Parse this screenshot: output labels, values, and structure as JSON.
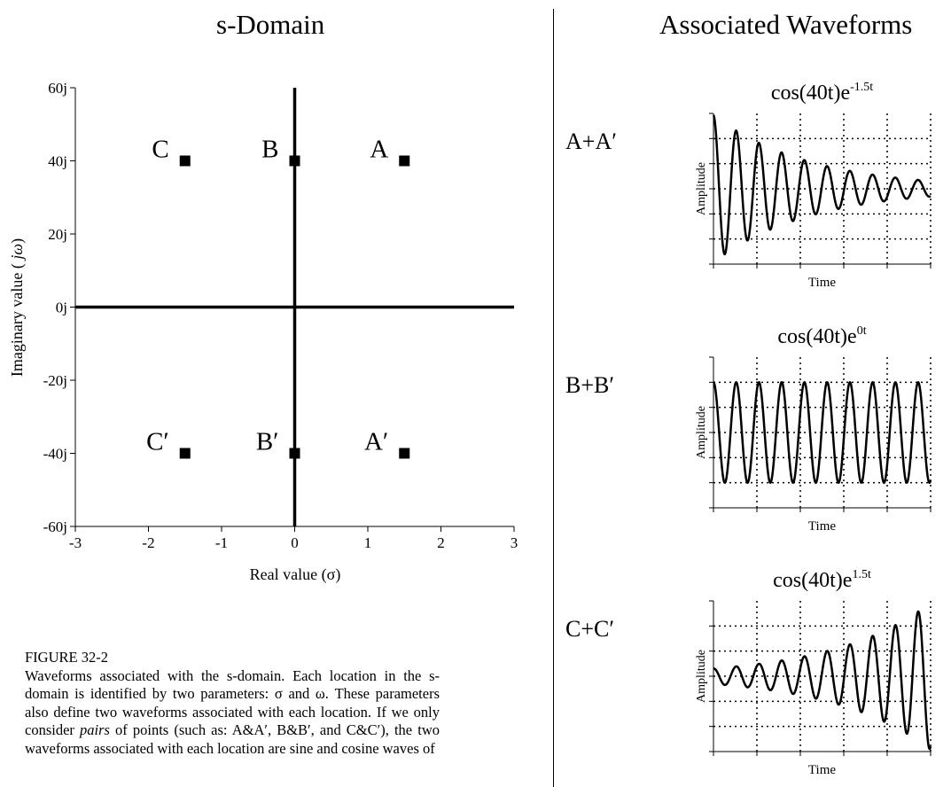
{
  "headings": {
    "left": "s-Domain",
    "right": "Associated Waveforms"
  },
  "chart_data": [
    {
      "type": "scatter",
      "title": "s-Domain",
      "xlabel": "Real value (σ)",
      "ylabel": "Imaginary value ( jω)",
      "xlim": [
        -3,
        3
      ],
      "ylim": [
        -60,
        60
      ],
      "xticks": [
        "-3",
        "-2",
        "-1",
        "0",
        "1",
        "2",
        "3"
      ],
      "yticks": [
        "60j",
        "40j",
        "20j",
        "0j",
        "-20j",
        "-40j",
        "-60j"
      ],
      "axes_lines": true,
      "points": [
        {
          "label": "A",
          "x": 1.5,
          "y": 40
        },
        {
          "label": "B",
          "x": 0,
          "y": 40
        },
        {
          "label": "C",
          "x": -1.5,
          "y": 40
        },
        {
          "label": "A′",
          "x": 1.5,
          "y": -40
        },
        {
          "label": "B′",
          "x": 0,
          "y": -40
        },
        {
          "label": "C′",
          "x": -1.5,
          "y": -40
        }
      ]
    },
    {
      "type": "line",
      "pair_label": "A+A′",
      "title_base": "cos(40t)e",
      "title_exp": "-1.5t",
      "xlabel": "Time",
      "ylabel": "Amplitude",
      "frequency": 40,
      "decay": -1.5,
      "grid": true
    },
    {
      "type": "line",
      "pair_label": "B+B′",
      "title_base": "cos(40t)e",
      "title_exp": "0t",
      "xlabel": "Time",
      "ylabel": "Amplitude",
      "frequency": 40,
      "decay": 0,
      "grid": true
    },
    {
      "type": "line",
      "pair_label": "C+C′",
      "title_base": "cos(40t)e",
      "title_exp": "1.5t",
      "xlabel": "Time",
      "ylabel": "Amplitude",
      "frequency": 40,
      "decay": 1.5,
      "grid": true
    }
  ],
  "caption": {
    "title": "FIGURE 32-2",
    "body_1": "Waveforms associated with the s-domain. Each location in the s-domain is identified by two parameters: σ and ω. These parameters also define two waveforms associated with each location. If we only consider ",
    "body_italic": "pairs",
    "body_2": " of points (such as: A&A′, B&B′, and C&C′), the two waveforms associated with each location are sine and cosine waves of"
  }
}
